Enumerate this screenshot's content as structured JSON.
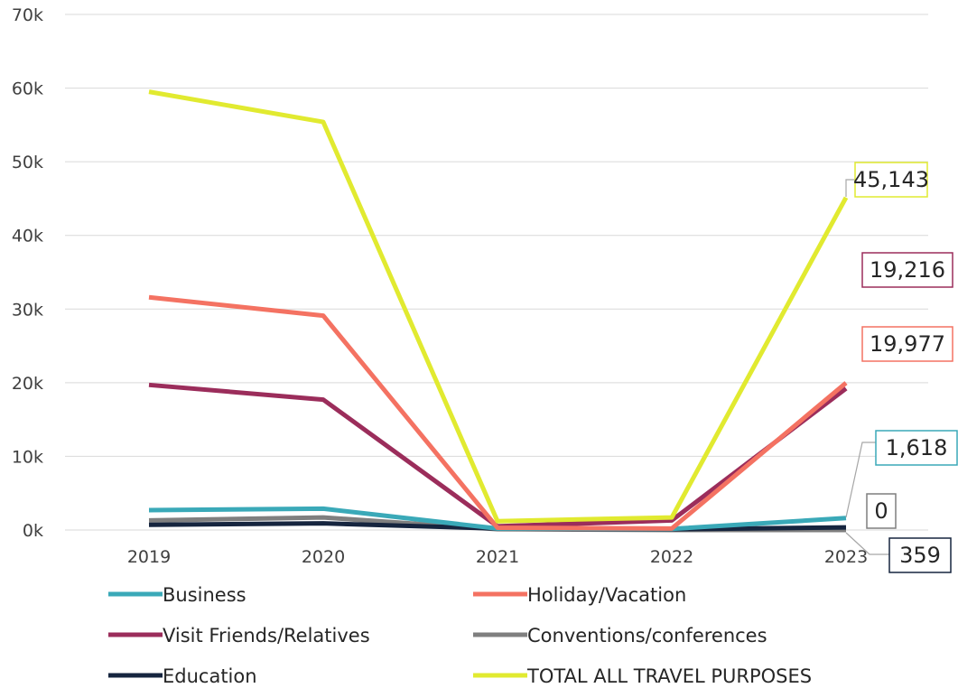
{
  "chart_data": {
    "type": "line",
    "categories": [
      "2019",
      "2020",
      "2021",
      "2022",
      "2023"
    ],
    "ylim": [
      0,
      70000
    ],
    "y_ticks": [
      {
        "value": 0,
        "label": "0k"
      },
      {
        "value": 10000,
        "label": "10k"
      },
      {
        "value": 20000,
        "label": "20k"
      },
      {
        "value": 30000,
        "label": "30k"
      },
      {
        "value": 40000,
        "label": "40k"
      },
      {
        "value": 50000,
        "label": "50k"
      },
      {
        "value": 60000,
        "label": "60k"
      },
      {
        "value": 70000,
        "label": "70k"
      }
    ],
    "grid": true,
    "legend_position": "bottom",
    "series": [
      {
        "name": "Business",
        "color": "#3aa9b8",
        "values": [
          2700,
          2900,
          200,
          150,
          1618
        ],
        "end_label": "1,618"
      },
      {
        "name": "Holiday/Vacation",
        "color": "#f47262",
        "values": [
          31600,
          29100,
          300,
          200,
          19977
        ],
        "end_label": "19,977"
      },
      {
        "name": "Visit Friends/Relatives",
        "color": "#9b2d5b",
        "values": [
          19700,
          17700,
          500,
          1300,
          19216
        ],
        "end_label": "19,216"
      },
      {
        "name": "Conventions/conferences",
        "color": "#7f7f7f",
        "values": [
          1300,
          1700,
          100,
          0,
          0
        ],
        "end_label": "0"
      },
      {
        "name": "Education",
        "color": "#16253f",
        "values": [
          700,
          900,
          200,
          100,
          359
        ],
        "end_label": "359"
      },
      {
        "name": "TOTAL ALL TRAVEL PURPOSES",
        "color": "#e1ea30",
        "values": [
          59500,
          55400,
          1200,
          1700,
          45143
        ],
        "end_label": "45,143"
      }
    ]
  }
}
